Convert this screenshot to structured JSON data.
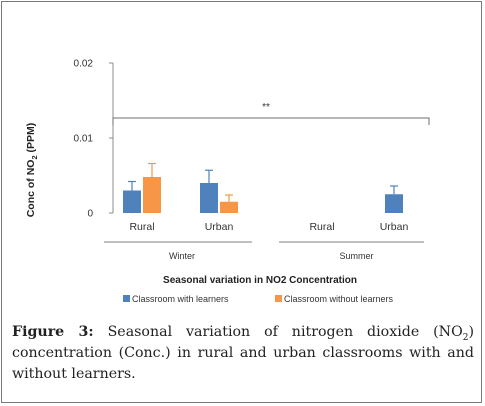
{
  "chart_data": {
    "type": "bar",
    "ylabel_main": "Conc of NO",
    "ylabel_sub": "2",
    "ylabel_unit": " (PPM)",
    "xlabel": "Seasonal variation in NO2 Concentration",
    "ylim": [
      0,
      0.02
    ],
    "yticks": [
      {
        "value": 0,
        "label": "0"
      },
      {
        "value": 0.01,
        "label": "0.01"
      },
      {
        "value": 0.02,
        "label": "0.02"
      }
    ],
    "categories": [
      "Rural",
      "Urban",
      "Rural",
      "Urban"
    ],
    "groups": [
      {
        "label": "Winter",
        "span": [
          0,
          1
        ]
      },
      {
        "label": "Summer",
        "span": [
          2,
          3
        ]
      }
    ],
    "series": [
      {
        "name": "Classroom with learners",
        "color": "#4f81bd",
        "values": [
          0.003,
          0.004,
          null,
          0.0025
        ],
        "errors": [
          0.0012,
          0.0017,
          null,
          0.0011
        ]
      },
      {
        "name": "Classroom without learners",
        "color": "#f79646",
        "values": [
          0.0048,
          0.0015,
          null,
          null
        ],
        "errors": [
          0.0018,
          0.0009,
          null,
          null
        ]
      }
    ],
    "annotation": "**",
    "legend_position": "bottom"
  },
  "caption": {
    "label": "Figure 3:",
    "text_before": " Seasonal variation of nitrogen dioxide (NO",
    "sub": "2",
    "text_after": ") concentration (Conc.) in rural and urban classrooms with and without learners."
  }
}
